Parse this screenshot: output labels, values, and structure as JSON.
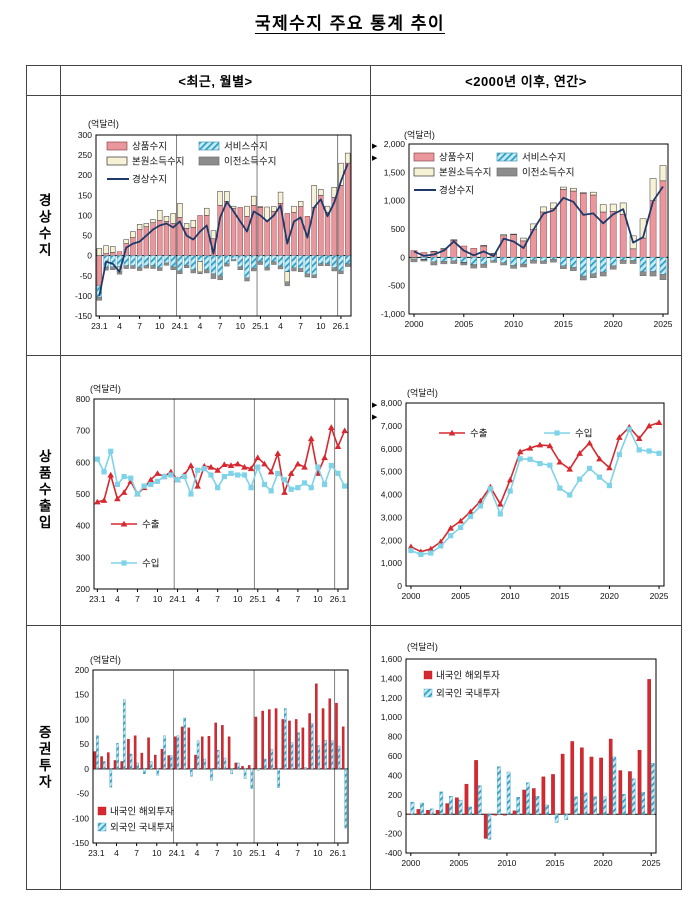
{
  "title": "국제수지 주요 통계 추이",
  "table": {
    "col_headers": [
      "<최근, 월별>",
      "<2000년 이후, 연간>"
    ],
    "row_headers": [
      "경상수지",
      "상품수출입",
      "증권투자"
    ]
  },
  "icons": {
    "pointer_arrow": "▶"
  },
  "colors": {
    "hatch_bg": "#C6EDF7",
    "hatch_fg": "#2F9FC4",
    "frame": "#000000",
    "separator": "#808080",
    "text": "#111111",
    "goods_bar": "#E9969C",
    "primary_income_bar": "#F7F1D5",
    "secondary_income_bar": "#8C8C8C",
    "current_account_line": "#1F3A68",
    "export_line": "#D7282F",
    "import_line": "#7FD3E8"
  },
  "chart_data": [
    {
      "id": "current-account-monthly",
      "type": "stacked_bar_line",
      "unit": "(억달러)",
      "ylim": [
        -150,
        300
      ],
      "ystep": 50,
      "xticks": [
        {
          "i": 0,
          "label": "23.1"
        },
        {
          "i": 3,
          "label": "4"
        },
        {
          "i": 6,
          "label": "7"
        },
        {
          "i": 9,
          "label": "10"
        },
        {
          "i": 12,
          "label": "24.1"
        },
        {
          "i": 15,
          "label": "4"
        },
        {
          "i": 18,
          "label": "7"
        },
        {
          "i": 21,
          "label": "10"
        },
        {
          "i": 24,
          "label": "25.1"
        },
        {
          "i": 27,
          "label": "4"
        },
        {
          "i": 30,
          "label": "7"
        },
        {
          "i": 33,
          "label": "10"
        },
        {
          "i": 36,
          "label": "26.1"
        }
      ],
      "separators_after": [
        11,
        23,
        35
      ],
      "series": [
        {
          "name": "상품수지",
          "key": "goods-balance",
          "style": {
            "fill": "#E9969C",
            "stroke": "#8A4A4E"
          },
          "values": [
            -75,
            5,
            8,
            10,
            30,
            45,
            65,
            72,
            82,
            88,
            85,
            80,
            95,
            68,
            70,
            100,
            100,
            42,
            125,
            135,
            118,
            120,
            98,
            125,
            120,
            88,
            110,
            130,
            105,
            108,
            122,
            98,
            120,
            150,
            108,
            145,
            175,
            230
          ]
        },
        {
          "name": "서비스수지",
          "key": "services-balance",
          "style": {
            "pattern": true,
            "stroke": "#4A99B5"
          },
          "values": [
            -28,
            -30,
            -28,
            -28,
            -25,
            -25,
            -30,
            -25,
            -25,
            -30,
            -18,
            -28,
            -38,
            -24,
            -35,
            -15,
            -35,
            -45,
            -50,
            -20,
            -10,
            -28,
            -55,
            -31,
            -15,
            -29,
            -15,
            -26,
            -40,
            -30,
            -32,
            -45,
            -48,
            -20,
            -20,
            -30,
            -38,
            -20
          ]
        },
        {
          "name": "본원소득수지",
          "key": "primary-income-balance",
          "style": {
            "fill": "#F7F1D5",
            "stroke": "#333333"
          },
          "values": [
            18,
            20,
            15,
            -12,
            10,
            15,
            13,
            8,
            8,
            25,
            13,
            25,
            35,
            12,
            18,
            -25,
            18,
            20,
            35,
            25,
            5,
            0,
            25,
            23,
            2,
            33,
            12,
            28,
            -25,
            15,
            13,
            0,
            55,
            15,
            15,
            25,
            55,
            25
          ]
        },
        {
          "name": "이전소득수지",
          "key": "secondary-income-balance",
          "style": {
            "fill": "#8C8C8C",
            "stroke": "#6E6E6E"
          },
          "values": [
            -8,
            -6,
            -7,
            -6,
            -7,
            -7,
            -7,
            -6,
            -7,
            -7,
            -6,
            -7,
            -7,
            -6,
            -8,
            -5,
            -8,
            -12,
            -10,
            -6,
            -3,
            -7,
            -8,
            -7,
            -7,
            -7,
            -7,
            -7,
            -10,
            -8,
            -8,
            -8,
            -7,
            -5,
            -5,
            -8,
            -7,
            -7
          ]
        }
      ],
      "line": {
        "name": "경상수지",
        "key": "current-account-line",
        "style": {
          "color": "#1F3A68"
        },
        "values": [
          -100,
          -15,
          -20,
          -40,
          20,
          30,
          35,
          50,
          65,
          75,
          80,
          70,
          85,
          50,
          40,
          60,
          75,
          5,
          95,
          134,
          110,
          85,
          60,
          110,
          100,
          85,
          100,
          125,
          30,
          85,
          95,
          45,
          120,
          140,
          98,
          132,
          185,
          228
        ]
      }
    },
    {
      "id": "current-account-annual",
      "type": "stacked_bar_line",
      "unit": "(억달러)",
      "ylim": [
        -1000,
        2000
      ],
      "ystep": 500,
      "xticks": [
        {
          "i": 0,
          "label": "2000"
        },
        {
          "i": 5,
          "label": "2005"
        },
        {
          "i": 10,
          "label": "2010"
        },
        {
          "i": 15,
          "label": "2015"
        },
        {
          "i": 20,
          "label": "2020"
        },
        {
          "i": 25,
          "label": "2025"
        }
      ],
      "separators_after": [],
      "series": [
        {
          "name": "상품수지",
          "key": "goods-balance",
          "style": {
            "fill": "#E9969C",
            "stroke": "#8A4A4E"
          },
          "values": [
            120,
            85,
            100,
            150,
            300,
            200,
            160,
            200,
            60,
            380,
            400,
            290,
            490,
            800,
            860,
            1200,
            1170,
            1130,
            1100,
            800,
            810,
            760,
            150,
            340,
            1000,
            1350
          ]
        },
        {
          "name": "서비스수지",
          "key": "services-balance",
          "style": {
            "pattern": true,
            "stroke": "#4A99B5"
          },
          "values": [
            -5,
            -35,
            -80,
            -70,
            -60,
            -90,
            -130,
            -120,
            -60,
            -95,
            -140,
            -120,
            -50,
            -65,
            -35,
            -150,
            -175,
            -330,
            -290,
            -260,
            -150,
            -50,
            -55,
            -255,
            -250,
            -300
          ]
        },
        {
          "name": "본원소득수지",
          "key": "primary-income-balance",
          "style": {
            "fill": "#F7F1D5",
            "stroke": "#333333"
          },
          "values": [
            -25,
            -10,
            5,
            5,
            10,
            -10,
            -5,
            10,
            10,
            20,
            10,
            50,
            100,
            90,
            100,
            40,
            50,
            10,
            50,
            130,
            130,
            200,
            230,
            340,
            390,
            270
          ]
        },
        {
          "name": "이전소득수지",
          "key": "secondary-income-balance",
          "style": {
            "fill": "#8C8C8C",
            "stroke": "#6E6E6E"
          },
          "values": [
            -50,
            -20,
            -55,
            -45,
            -50,
            -35,
            -55,
            -60,
            -30,
            -40,
            -55,
            -50,
            -55,
            -45,
            -50,
            -50,
            -60,
            -70,
            -70,
            -70,
            -60,
            -60,
            -55,
            -70,
            -80,
            -95
          ]
        }
      ],
      "line": {
        "name": "경상수지",
        "key": "current-account-line",
        "style": {
          "color": "#1F3A68"
        },
        "values": [
          105,
          25,
          50,
          120,
          280,
          120,
          35,
          105,
          20,
          330,
          280,
          165,
          490,
          770,
          830,
          1050,
          980,
          750,
          775,
          600,
          760,
          850,
          260,
          355,
          990,
          1250
        ]
      }
    },
    {
      "id": "goods-trade-monthly",
      "type": "line",
      "unit": "(억달러)",
      "ylim": [
        200,
        800
      ],
      "ystep": 100,
      "xticks": [
        {
          "i": 0,
          "label": "23.1"
        },
        {
          "i": 3,
          "label": "4"
        },
        {
          "i": 6,
          "label": "7"
        },
        {
          "i": 9,
          "label": "10"
        },
        {
          "i": 12,
          "label": "24.1"
        },
        {
          "i": 15,
          "label": "4"
        },
        {
          "i": 18,
          "label": "7"
        },
        {
          "i": 21,
          "label": "10"
        },
        {
          "i": 24,
          "label": "25.1"
        },
        {
          "i": 27,
          "label": "4"
        },
        {
          "i": 30,
          "label": "7"
        },
        {
          "i": 33,
          "label": "10"
        },
        {
          "i": 36,
          "label": "26.1"
        }
      ],
      "separators_after": [
        11,
        23,
        35
      ],
      "series": [
        {
          "name": "수출",
          "key": "exports-line",
          "style": {
            "color": "#D7282F",
            "marker": "triangle"
          },
          "values": [
            475,
            480,
            560,
            485,
            505,
            540,
            500,
            520,
            545,
            565,
            555,
            570,
            545,
            560,
            590,
            525,
            588,
            585,
            575,
            593,
            590,
            595,
            585,
            580,
            615,
            595,
            570,
            628,
            505,
            565,
            595,
            585,
            675,
            565,
            615,
            710,
            650,
            700
          ]
        },
        {
          "name": "수입",
          "key": "imports-line",
          "style": {
            "color": "#7FD3E8",
            "marker": "square"
          },
          "values": [
            610,
            570,
            635,
            530,
            555,
            550,
            500,
            525,
            530,
            540,
            555,
            560,
            545,
            555,
            500,
            575,
            580,
            560,
            520,
            555,
            565,
            560,
            560,
            520,
            585,
            530,
            510,
            565,
            545,
            515,
            520,
            535,
            520,
            585,
            530,
            590,
            565,
            525
          ]
        }
      ]
    },
    {
      "id": "goods-trade-annual",
      "type": "line",
      "unit": "(억달러)",
      "ylim": [
        0,
        8000
      ],
      "ystep": 1000,
      "xticks": [
        {
          "i": 0,
          "label": "2000"
        },
        {
          "i": 5,
          "label": "2005"
        },
        {
          "i": 10,
          "label": "2010"
        },
        {
          "i": 15,
          "label": "2015"
        },
        {
          "i": 20,
          "label": "2020"
        },
        {
          "i": 25,
          "label": "2025"
        }
      ],
      "separators_after": [],
      "series": [
        {
          "name": "수출",
          "key": "exports-line",
          "style": {
            "color": "#D7282F",
            "marker": "triangle"
          },
          "values": [
            1720,
            1500,
            1620,
            1930,
            2530,
            2840,
            3250,
            3710,
            4330,
            3580,
            4640,
            5870,
            6030,
            6170,
            6130,
            5420,
            5110,
            5800,
            6250,
            5560,
            5170,
            6500,
            6950,
            6450,
            7000,
            7150
          ]
        },
        {
          "name": "수입",
          "key": "imports-line",
          "style": {
            "color": "#7FD3E8",
            "marker": "square"
          },
          "values": [
            1550,
            1380,
            1440,
            1750,
            2200,
            2560,
            3040,
            3500,
            4250,
            3150,
            4150,
            5560,
            5540,
            5350,
            5280,
            4280,
            3980,
            4670,
            5140,
            4760,
            4390,
            5750,
            6850,
            5950,
            5900,
            5800
          ]
        }
      ]
    },
    {
      "id": "securities-monthly",
      "type": "grouped_bar",
      "unit": "(억달러)",
      "ylim": [
        -150,
        200
      ],
      "ystep": 50,
      "xticks": [
        {
          "i": 0,
          "label": "23.1"
        },
        {
          "i": 3,
          "label": "4"
        },
        {
          "i": 6,
          "label": "7"
        },
        {
          "i": 9,
          "label": "10"
        },
        {
          "i": 12,
          "label": "24.1"
        },
        {
          "i": 15,
          "label": "4"
        },
        {
          "i": 18,
          "label": "7"
        },
        {
          "i": 21,
          "label": "10"
        },
        {
          "i": 24,
          "label": "25.1"
        },
        {
          "i": 27,
          "label": "4"
        },
        {
          "i": 30,
          "label": "7"
        },
        {
          "i": 33,
          "label": "10"
        },
        {
          "i": 36,
          "label": "26.1"
        }
      ],
      "separators_after": [
        11,
        23,
        35
      ],
      "series": [
        {
          "name": "내국인 해외투자",
          "key": "resident-overseas-investment-bars",
          "style": {
            "fill": "#D7282F",
            "stroke": "#A81E24"
          },
          "values": [
            35,
            25,
            33,
            17,
            15,
            60,
            67,
            32,
            63,
            28,
            40,
            27,
            65,
            85,
            83,
            28,
            65,
            66,
            93,
            88,
            65,
            12,
            5,
            7,
            105,
            117,
            120,
            122,
            100,
            97,
            100,
            83,
            112,
            172,
            122,
            142,
            133,
            85
          ]
        },
        {
          "name": "외국인 국내투자",
          "key": "foreign-domestic-investment-bars",
          "style": {
            "pattern": true,
            "stroke": "#4A99B5"
          },
          "values": [
            67,
            15,
            -37,
            52,
            140,
            30,
            12,
            -10,
            15,
            -13,
            67,
            27,
            67,
            103,
            -15,
            57,
            20,
            -23,
            38,
            22,
            -10,
            12,
            -20,
            -40,
            -3,
            20,
            40,
            -38,
            122,
            53,
            73,
            3,
            92,
            47,
            58,
            57,
            46,
            -120
          ]
        }
      ]
    },
    {
      "id": "securities-annual",
      "type": "grouped_bar",
      "unit": "(억달러)",
      "ylim": [
        -400,
        1600
      ],
      "ystep": 200,
      "xticks": [
        {
          "i": 0,
          "label": "2000"
        },
        {
          "i": 5,
          "label": "2005"
        },
        {
          "i": 10,
          "label": "2010"
        },
        {
          "i": 15,
          "label": "2015"
        },
        {
          "i": 20,
          "label": "2020"
        },
        {
          "i": 25,
          "label": "2025"
        }
      ],
      "separators_after": [],
      "series": [
        {
          "name": "내국인 해외투자",
          "key": "resident-overseas-investment-bars",
          "style": {
            "fill": "#D7282F",
            "stroke": "#A81E24"
          },
          "values": [
            5,
            50,
            40,
            40,
            110,
            170,
            310,
            555,
            -250,
            -10,
            -10,
            35,
            250,
            265,
            385,
            410,
            620,
            750,
            685,
            590,
            580,
            775,
            450,
            440,
            660,
            1390
          ]
        },
        {
          "name": "외국인 국내투자",
          "key": "foreign-domestic-investment-bars",
          "style": {
            "pattern": true,
            "stroke": "#4A99B5"
          },
          "values": [
            125,
            115,
            55,
            230,
            185,
            145,
            75,
            295,
            -260,
            490,
            435,
            175,
            325,
            185,
            95,
            -85,
            -55,
            180,
            220,
            180,
            180,
            590,
            205,
            365,
            225,
            525
          ]
        }
      ]
    }
  ]
}
